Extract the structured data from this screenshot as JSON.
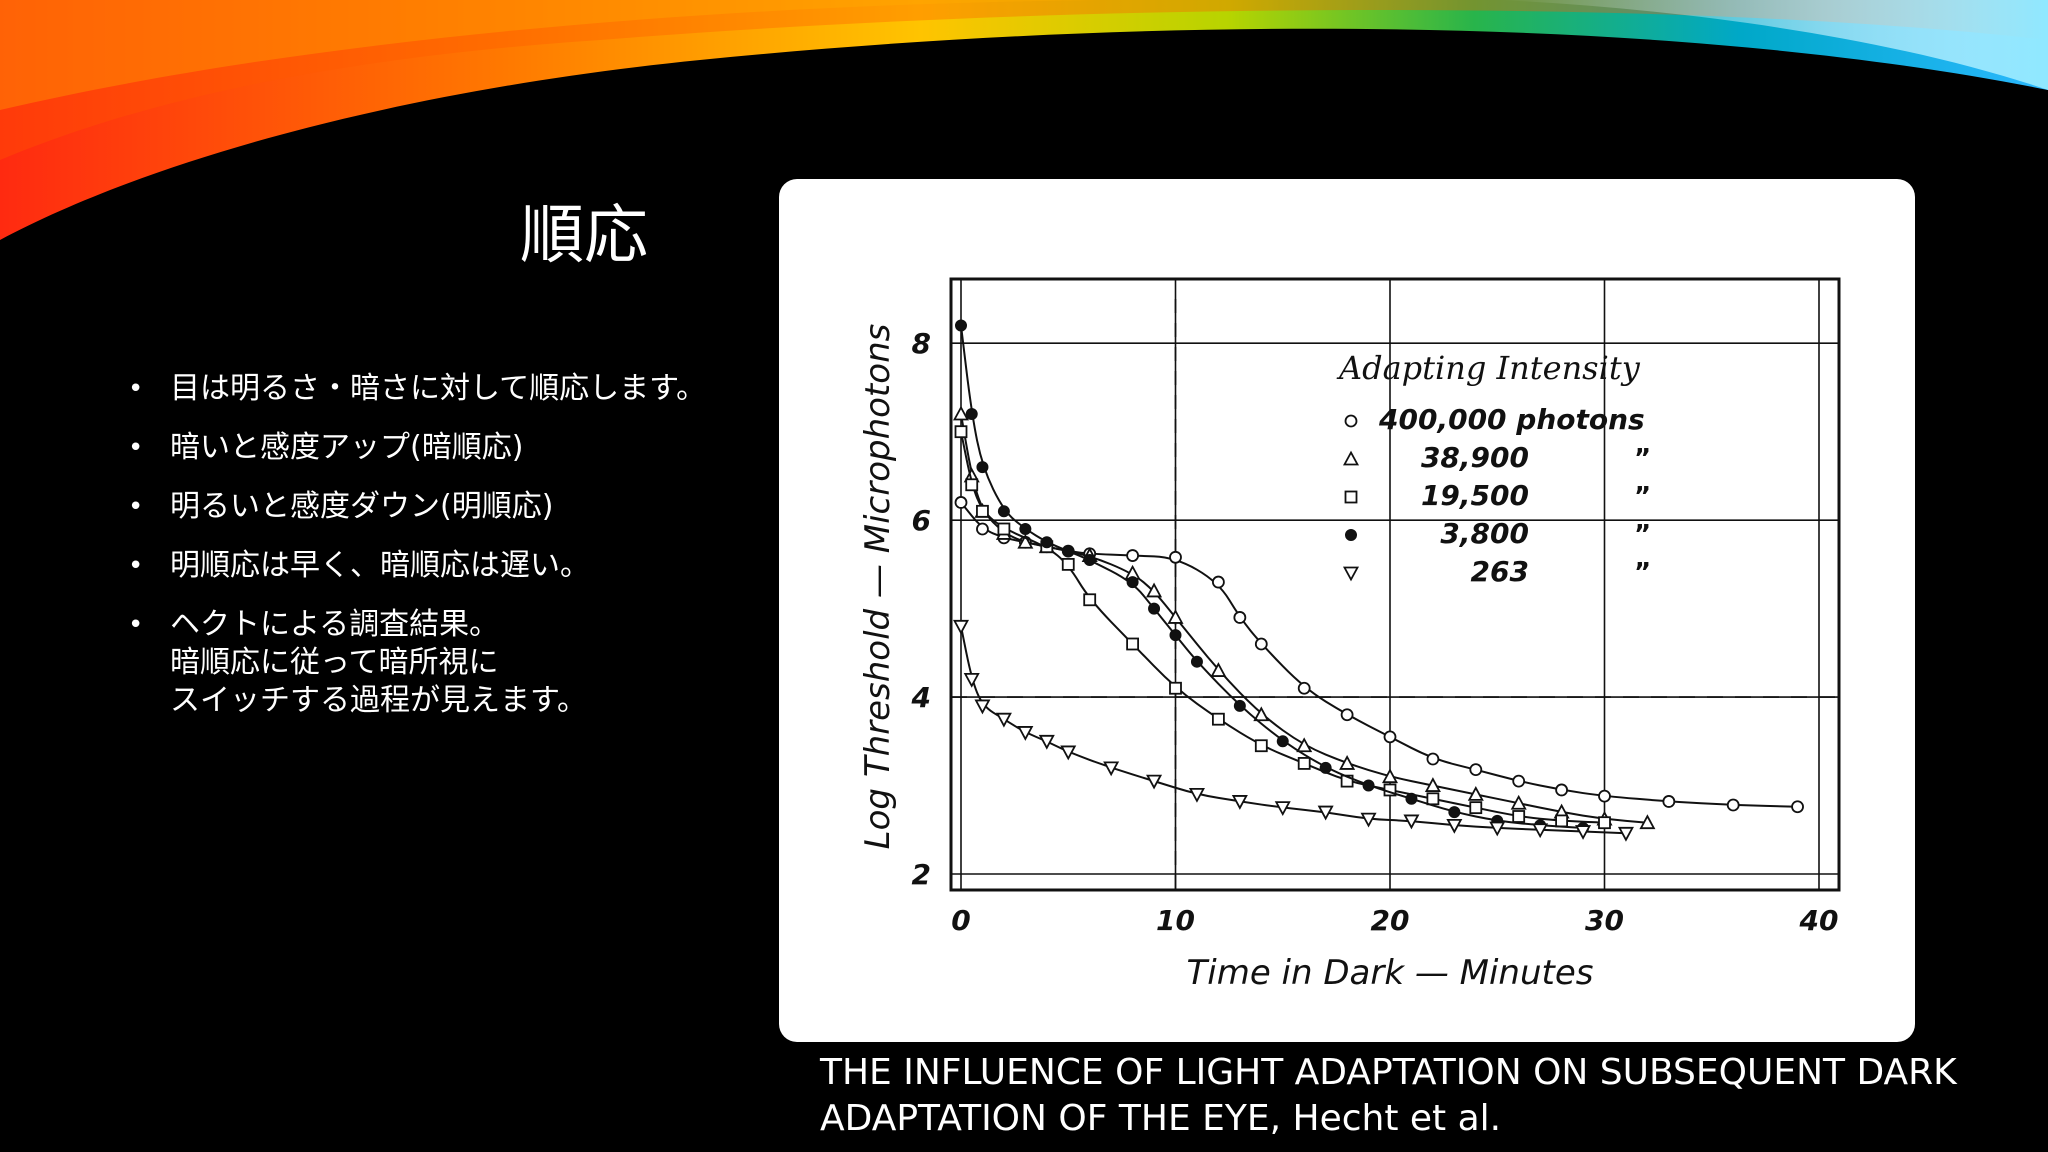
{
  "slide": {
    "title": "順応",
    "bullets": [
      [
        "目は明るさ・暗さに対して順応します。"
      ],
      [
        "暗いと感度アップ(暗順応)"
      ],
      [
        "明るいと感度ダウン(明順応)"
      ],
      [
        "明順応は早く、暗順応は遅い。"
      ],
      [
        "ヘクトによる調査結果。",
        "暗順応に従って暗所視に",
        "スイッチする過程が見えます。"
      ]
    ],
    "caption_lines": [
      "THE INFLUENCE OF LIGHT ADAPTATION ON SUBSEQUENT DARK",
      "ADAPTATION OF THE EYE, Hecht et al."
    ]
  },
  "chart_data": {
    "type": "line",
    "xlabel": "Time in Dark — Minutes",
    "ylabel": "Log Threshold — Microphotons",
    "xlim": [
      0,
      40
    ],
    "ylim": [
      2,
      8.5
    ],
    "xticks": [
      "0",
      "10",
      "20",
      "30",
      "40"
    ],
    "yticks": [
      "2",
      "4",
      "6",
      "8"
    ],
    "grid": true,
    "legend_title": "Adapting Intensity",
    "legend_position": "top-right",
    "series": [
      {
        "name": "400,000 photons",
        "legend_value": "400,000 photons",
        "marker": "circle",
        "points": [
          [
            0,
            6.2
          ],
          [
            1,
            5.9
          ],
          [
            2,
            5.8
          ],
          [
            3,
            5.75
          ],
          [
            4,
            5.7
          ],
          [
            5,
            5.65
          ],
          [
            6,
            5.62
          ],
          [
            8,
            5.6
          ],
          [
            10,
            5.58
          ],
          [
            12,
            5.3
          ],
          [
            13,
            4.9
          ],
          [
            14,
            4.6
          ],
          [
            16,
            4.1
          ],
          [
            18,
            3.8
          ],
          [
            20,
            3.55
          ],
          [
            22,
            3.3
          ],
          [
            24,
            3.18
          ],
          [
            26,
            3.05
          ],
          [
            28,
            2.95
          ],
          [
            30,
            2.88
          ],
          [
            33,
            2.82
          ],
          [
            36,
            2.78
          ],
          [
            39,
            2.76
          ]
        ]
      },
      {
        "name": "38,900",
        "legend_value": "38,900",
        "marker": "triangle-up",
        "points": [
          [
            0,
            7.2
          ],
          [
            0.5,
            6.5
          ],
          [
            1,
            6.1
          ],
          [
            2,
            5.85
          ],
          [
            3,
            5.75
          ],
          [
            4,
            5.7
          ],
          [
            6,
            5.6
          ],
          [
            8,
            5.4
          ],
          [
            9,
            5.2
          ],
          [
            10,
            4.9
          ],
          [
            12,
            4.3
          ],
          [
            14,
            3.8
          ],
          [
            16,
            3.45
          ],
          [
            18,
            3.25
          ],
          [
            20,
            3.1
          ],
          [
            22,
            3.0
          ],
          [
            24,
            2.9
          ],
          [
            26,
            2.8
          ],
          [
            28,
            2.7
          ],
          [
            30,
            2.62
          ],
          [
            32,
            2.58
          ]
        ]
      },
      {
        "name": "19,500",
        "legend_value": "19,500",
        "marker": "square",
        "points": [
          [
            0,
            7.0
          ],
          [
            0.5,
            6.4
          ],
          [
            1,
            6.1
          ],
          [
            2,
            5.9
          ],
          [
            4,
            5.7
          ],
          [
            5,
            5.5
          ],
          [
            6,
            5.1
          ],
          [
            8,
            4.6
          ],
          [
            10,
            4.1
          ],
          [
            12,
            3.75
          ],
          [
            14,
            3.45
          ],
          [
            16,
            3.25
          ],
          [
            18,
            3.05
          ],
          [
            20,
            2.95
          ],
          [
            22,
            2.85
          ],
          [
            24,
            2.75
          ],
          [
            26,
            2.65
          ],
          [
            28,
            2.6
          ],
          [
            30,
            2.58
          ]
        ]
      },
      {
        "name": "3,800",
        "legend_value": "3,800",
        "marker": "dot",
        "points": [
          [
            0,
            8.2
          ],
          [
            0.5,
            7.2
          ],
          [
            1,
            6.6
          ],
          [
            2,
            6.1
          ],
          [
            3,
            5.9
          ],
          [
            4,
            5.75
          ],
          [
            5,
            5.65
          ],
          [
            6,
            5.55
          ],
          [
            8,
            5.3
          ],
          [
            9,
            5.0
          ],
          [
            10,
            4.7
          ],
          [
            11,
            4.4
          ],
          [
            13,
            3.9
          ],
          [
            15,
            3.5
          ],
          [
            17,
            3.2
          ],
          [
            19,
            3.0
          ],
          [
            21,
            2.85
          ],
          [
            23,
            2.7
          ],
          [
            25,
            2.6
          ],
          [
            27,
            2.55
          ],
          [
            29,
            2.52
          ]
        ]
      },
      {
        "name": "263",
        "legend_value": "263",
        "marker": "triangle-down",
        "points": [
          [
            0,
            4.8
          ],
          [
            0.5,
            4.2
          ],
          [
            1,
            3.9
          ],
          [
            2,
            3.75
          ],
          [
            3,
            3.6
          ],
          [
            4,
            3.5
          ],
          [
            5,
            3.38
          ],
          [
            7,
            3.2
          ],
          [
            9,
            3.05
          ],
          [
            11,
            2.9
          ],
          [
            13,
            2.82
          ],
          [
            15,
            2.75
          ],
          [
            17,
            2.7
          ],
          [
            19,
            2.62
          ],
          [
            21,
            2.6
          ],
          [
            23,
            2.55
          ],
          [
            25,
            2.52
          ],
          [
            27,
            2.5
          ],
          [
            29,
            2.48
          ],
          [
            31,
            2.46
          ]
        ]
      }
    ],
    "dashed_reference": {
      "x": 10,
      "y": 4.0
    }
  }
}
